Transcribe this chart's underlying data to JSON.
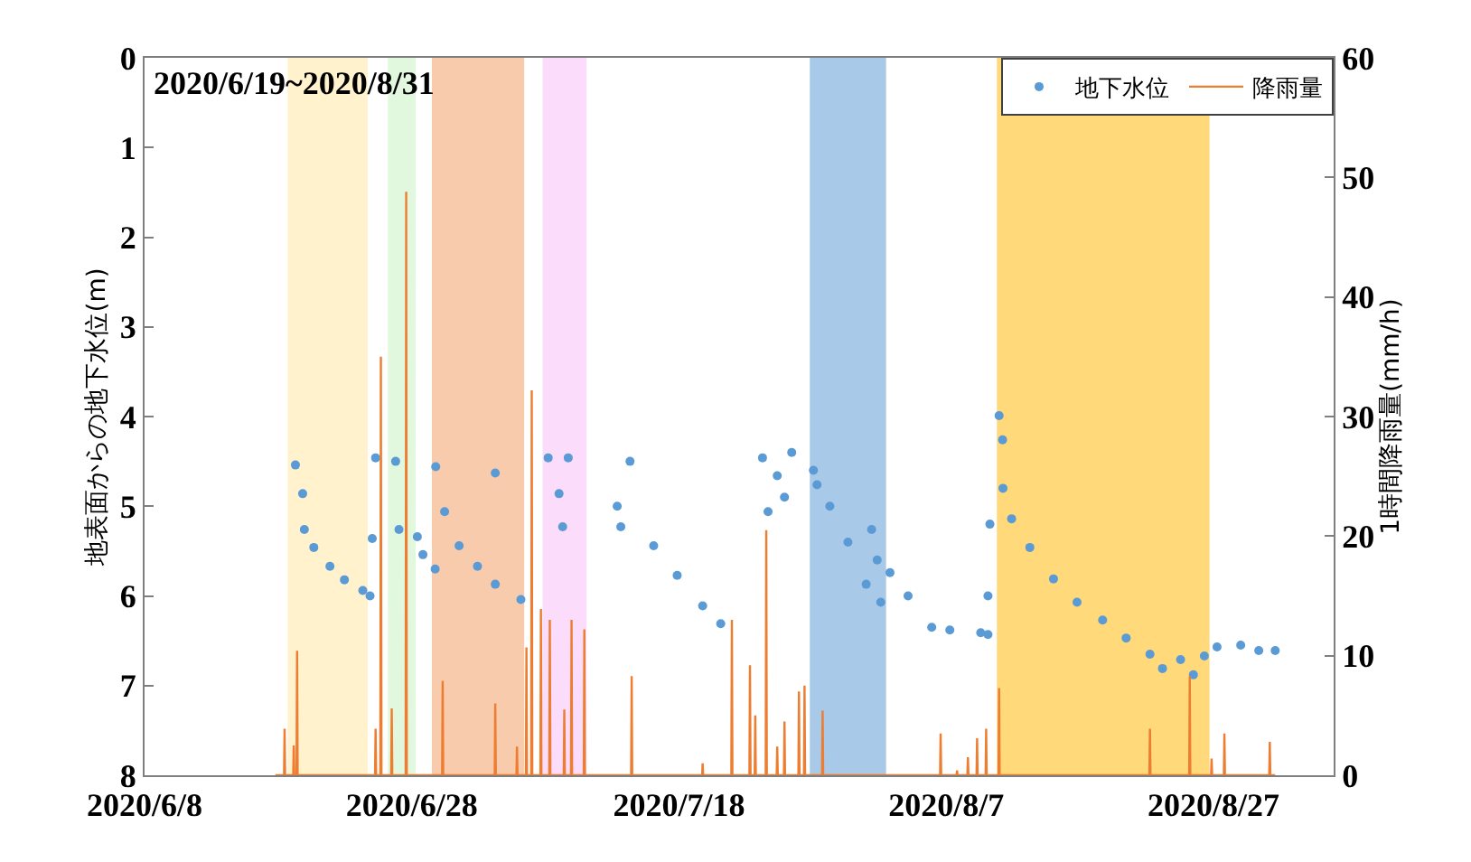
{
  "chart_data": {
    "type": "scatter",
    "ylabel": "地表面からの地下水位(m)",
    "y2label": "1時間降雨量(mm/h)",
    "annotations": [
      "2020/6/19~2020/8/31"
    ],
    "xlim": [
      "2020-06-08",
      "2020-09-05"
    ],
    "xticks": [
      {
        "value": "2020-06-08",
        "label": "2020/6/8"
      },
      {
        "value": "2020-06-28",
        "label": "2020/6/28"
      },
      {
        "value": "2020-07-18",
        "label": "2020/7/18"
      },
      {
        "value": "2020-08-07",
        "label": "2020/8/7"
      },
      {
        "value": "2020-08-27",
        "label": "2020/8/27"
      }
    ],
    "ylim": [
      8,
      0
    ],
    "yticks": [
      0,
      1,
      2,
      3,
      4,
      5,
      6,
      7,
      8
    ],
    "y2lim": [
      0,
      60
    ],
    "y2ticks": [
      0,
      10,
      20,
      30,
      40,
      50,
      60
    ],
    "grid": false,
    "legend": "top right",
    "bands": [
      {
        "axis": "x",
        "from": "2020-06-18T17:00",
        "to": "2020-06-24T17:00",
        "color": "#fff2cc"
      },
      {
        "axis": "x",
        "from": "2020-06-26T05:00",
        "to": "2020-06-28T07:00",
        "color": "#e2f8de"
      },
      {
        "axis": "x",
        "from": "2020-06-29T12:00",
        "to": "2020-07-06T10:00",
        "color": "#f8cbad"
      },
      {
        "axis": "x",
        "from": "2020-07-07T19:00",
        "to": "2020-07-11T02:00",
        "color": "#fbdcfb"
      },
      {
        "axis": "x",
        "from": "2020-07-27T19:00",
        "to": "2020-08-02T12:00",
        "color": "#a9c9e8"
      },
      {
        "axis": "x",
        "from": "2020-08-10T19:00",
        "to": "2020-08-26T17:00",
        "color": "#ffd97a"
      }
    ],
    "series": [
      {
        "name": "地下水位",
        "marker": "circle",
        "color": "#5b9bd5",
        "x": [
          "2020-06-19T07:00",
          "2020-06-19T20:00",
          "2020-06-19T23:00",
          "2020-06-20T16:00",
          "2020-06-21T21:00",
          "2020-06-22T23:00",
          "2020-06-24T08:00",
          "2020-06-24T21:00",
          "2020-06-25T01:00",
          "2020-06-25T07:00",
          "2020-06-26T19:00",
          "2020-06-27T01:00",
          "2020-06-28T10:00",
          "2020-06-28T20:00",
          "2020-06-29T18:00",
          "2020-06-29T19:00",
          "2020-06-30T11:00",
          "2020-07-01T13:00",
          "2020-07-02T22:00",
          "2020-07-04T06:00",
          "2020-07-04T06:00",
          "2020-07-06T04:00",
          "2020-07-08T05:00",
          "2020-07-09T00:30",
          "2020-07-09T07:00",
          "2020-07-09T17:00",
          "2020-07-13T09:00",
          "2020-07-13T15:30",
          "2020-07-14T08:00",
          "2020-07-16T02:30",
          "2020-07-17T20:45",
          "2020-07-19T18:30",
          "2020-07-21T03:00",
          "2020-07-24T06:00",
          "2020-07-24T16:00",
          "2020-07-25T08:30",
          "2020-07-25T21:30",
          "2020-07-26T10:30",
          "2020-07-28T01:30",
          "2020-07-28T08:00",
          "2020-07-29T07:00",
          "2020-07-30T15:30",
          "2020-08-01T00:15",
          "2020-08-01T10:00",
          "2020-08-01T20:00",
          "2020-08-02T02:30",
          "2020-08-02T19:00",
          "2020-08-04T03:30",
          "2020-08-05T22:00",
          "2020-08-07T06:30",
          "2020-08-09T14:00",
          "2020-08-10T03:00",
          "2020-08-10T03:00",
          "2020-08-10T06:30",
          "2020-08-10T23:00",
          "2020-08-11T05:15",
          "2020-08-11T06:00",
          "2020-08-11T21:30",
          "2020-08-13T06:15",
          "2020-08-15T00:45",
          "2020-08-16T19:00",
          "2020-08-18T17:00",
          "2020-08-20T11:15",
          "2020-08-22T06:00",
          "2020-08-23T04:30",
          "2020-08-24T13:00",
          "2020-08-25T12:00",
          "2020-08-26T07:45",
          "2020-08-27T06:30",
          "2020-08-29T01:00",
          "2020-08-30T09:30",
          "2020-08-31T15:00"
        ],
        "values": [
          4.54,
          4.86,
          5.26,
          5.46,
          5.67,
          5.82,
          5.94,
          6.0,
          5.36,
          4.46,
          4.5,
          5.26,
          5.34,
          5.54,
          5.7,
          4.56,
          5.06,
          5.44,
          5.67,
          5.87,
          4.63,
          6.04,
          4.46,
          4.86,
          5.23,
          4.46,
          5.0,
          5.23,
          4.5,
          5.44,
          5.77,
          6.11,
          6.31,
          4.46,
          5.06,
          4.66,
          4.9,
          4.4,
          4.6,
          4.76,
          5.0,
          5.4,
          5.87,
          5.26,
          5.6,
          6.07,
          5.74,
          6.0,
          6.35,
          6.38,
          6.41,
          6.43,
          6.0,
          5.2,
          3.99,
          4.26,
          4.8,
          5.14,
          5.46,
          5.81,
          6.07,
          6.27,
          6.47,
          6.65,
          6.81,
          6.71,
          6.88,
          6.67,
          6.57,
          6.55,
          6.61,
          6.61
        ]
      },
      {
        "name": "降雨量",
        "type": "line",
        "axis": "y2",
        "color": "#ed7d31",
        "x": [
          "2020-06-17T19:00",
          "2020-06-18T10:30",
          "2020-06-18T11:30",
          "2020-06-18T12:30",
          "2020-06-19T03:00",
          "2020-06-19T04:00",
          "2020-06-19T05:00",
          "2020-06-19T09:00",
          "2020-06-19T10:00",
          "2020-06-19T11:00",
          "2020-06-25T06:00",
          "2020-06-25T07:00",
          "2020-06-25T08:00",
          "2020-06-25T15:30",
          "2020-06-25T16:30",
          "2020-06-25T17:30",
          "2020-06-26T11:00",
          "2020-06-26T12:00",
          "2020-06-26T13:00",
          "2020-06-27T13:00",
          "2020-06-27T14:00",
          "2020-06-27T15:00",
          "2020-06-30T06:30",
          "2020-06-30T07:30",
          "2020-06-30T08:30",
          "2020-07-04T05:00",
          "2020-07-04T06:00",
          "2020-07-04T07:00",
          "2020-07-05T20:00",
          "2020-07-05T21:00",
          "2020-07-05T22:00",
          "2020-07-06T13:00",
          "2020-07-06T14:00",
          "2020-07-06T15:00",
          "2020-07-06T22:30",
          "2020-07-06T23:30",
          "2020-07-07T00:30",
          "2020-07-07T15:00",
          "2020-07-07T16:00",
          "2020-07-07T17:00",
          "2020-07-08T07:00",
          "2020-07-08T08:00",
          "2020-07-08T09:00",
          "2020-07-09T09:00",
          "2020-07-09T10:00",
          "2020-07-09T11:00",
          "2020-07-09T22:00",
          "2020-07-09T23:00",
          "2020-07-10T00:00",
          "2020-07-10T21:00",
          "2020-07-10T22:00",
          "2020-07-10T23:00",
          "2020-07-14T10:00",
          "2020-07-14T11:00",
          "2020-07-14T12:00",
          "2020-07-19T17:30",
          "2020-07-19T18:30",
          "2020-07-19T19:30",
          "2020-07-21T22:00",
          "2020-07-21T23:00",
          "2020-07-22T00:00",
          "2020-07-23T06:30",
          "2020-07-23T07:30",
          "2020-07-23T08:30",
          "2020-07-23T16:00",
          "2020-07-23T17:00",
          "2020-07-23T18:00",
          "2020-07-24T11:45",
          "2020-07-24T12:45",
          "2020-07-24T13:45",
          "2020-07-25T07:30",
          "2020-07-25T08:30",
          "2020-07-25T09:30",
          "2020-07-25T20:30",
          "2020-07-25T21:30",
          "2020-07-25T22:30",
          "2020-07-26T22:30",
          "2020-07-26T23:30",
          "2020-07-27T00:30",
          "2020-07-27T08:30",
          "2020-07-27T09:30",
          "2020-07-27T10:30",
          "2020-07-28T17:00",
          "2020-07-28T18:00",
          "2020-07-28T19:00",
          "2020-08-06T13:00",
          "2020-08-06T14:00",
          "2020-08-06T15:00",
          "2020-08-07T18:30",
          "2020-08-07T19:30",
          "2020-08-07T20:30",
          "2020-08-08T14:00",
          "2020-08-08T15:00",
          "2020-08-08T16:00",
          "2020-08-09T06:30",
          "2020-08-09T07:30",
          "2020-08-09T08:30",
          "2020-08-09T22:45",
          "2020-08-09T23:45",
          "2020-08-10T00:45",
          "2020-08-10T22:00",
          "2020-08-10T23:00",
          "2020-08-11T00:00",
          "2020-08-22T05:00",
          "2020-08-22T06:00",
          "2020-08-22T07:00",
          "2020-08-25T04:30",
          "2020-08-25T05:30",
          "2020-08-25T06:30",
          "2020-08-26T19:45",
          "2020-08-26T20:45",
          "2020-08-26T21:45",
          "2020-08-27T18:45",
          "2020-08-27T19:45",
          "2020-08-27T20:45",
          "2020-08-31T04:15",
          "2020-08-31T05:15",
          "2020-08-31T06:15",
          "2020-08-31T15:00"
        ],
        "values": [
          0,
          0,
          3.9,
          0,
          0,
          2.5,
          0,
          0,
          10.4,
          0,
          0,
          3.9,
          0,
          0,
          35,
          0,
          0,
          5.6,
          0,
          0,
          48.8,
          0,
          0,
          7.9,
          0,
          0,
          6.0,
          0,
          0,
          2.4,
          0,
          0,
          10.7,
          0,
          0,
          32.2,
          0,
          0,
          13.9,
          0,
          0,
          13,
          0,
          0,
          5.5,
          0,
          0,
          13,
          0,
          0,
          12.2,
          0,
          0,
          8.3,
          0,
          0,
          1.0,
          0,
          0,
          13,
          0,
          0,
          9.2,
          0,
          0,
          5.0,
          0,
          0,
          20.5,
          0,
          0,
          2.4,
          0,
          0,
          4.5,
          0,
          0,
          7.0,
          0,
          0,
          7.5,
          0,
          0,
          5.4,
          0,
          0,
          3.5,
          0,
          0,
          0.4,
          0,
          0,
          1.5,
          0,
          0,
          3.1,
          0,
          0,
          3.9,
          0,
          0,
          7.3,
          0,
          0,
          3.9,
          0,
          0,
          8.3,
          0,
          0,
          1.4,
          0,
          0,
          3.5,
          0,
          0,
          2.8,
          0,
          0
        ]
      }
    ]
  }
}
